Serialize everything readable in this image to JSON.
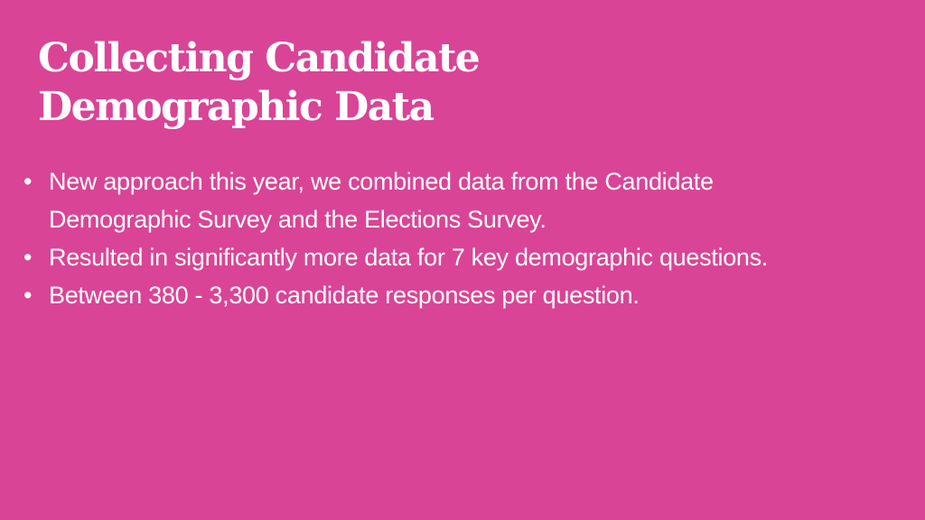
{
  "title": {
    "lines": [
      "Collecting Candidate",
      "Demographic Data"
    ]
  },
  "bullets": [
    {
      "lines": [
        "New approach this year, we combined data from the Candidate",
        "Demographic Survey and the Elections Survey."
      ]
    },
    {
      "lines": [
        "Resulted in significantly more data for 7 key demographic questions."
      ]
    },
    {
      "lines": [
        "Between 380 - 3,300 candidate responses per question."
      ]
    }
  ]
}
